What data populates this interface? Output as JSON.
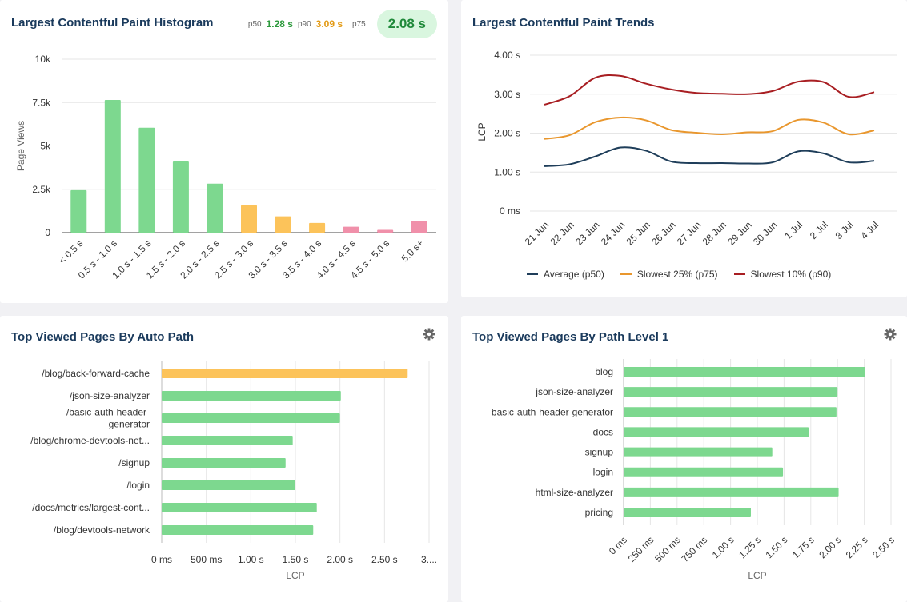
{
  "colors": {
    "good": "#7dd88f",
    "needs": "#fcc35a",
    "poor": "#f090aa",
    "p50": "#1f3e5a",
    "p75": "#e9972e",
    "p90": "#a81e22",
    "grid": "#e6e6e6",
    "axis": "#444444",
    "title": "#1a3a5c"
  },
  "histogram": {
    "title": "Largest Contentful Paint Histogram",
    "stats": {
      "p50_label": "p50",
      "p50_value": "1.28 s",
      "p90_label": "p90",
      "p90_value": "3.09 s",
      "p75_label": "p75",
      "p75_value": "2.08 s"
    }
  },
  "trends": {
    "title": "Largest Contentful Paint Trends",
    "legend": [
      {
        "label": "Average (p50)",
        "color": "#1f3e5a"
      },
      {
        "label": "Slowest 25% (p75)",
        "color": "#e9972e"
      },
      {
        "label": "Slowest 10% (p90)",
        "color": "#a81e22"
      }
    ]
  },
  "auto_path": {
    "title": "Top Viewed Pages By Auto Path",
    "gear_icon": "gear-icon"
  },
  "path_level": {
    "title": "Top Viewed Pages By Path Level 1",
    "gear_icon": "gear-icon"
  },
  "chart_data": [
    {
      "type": "bar",
      "title": "Largest Contentful Paint Histogram",
      "ylabel": "Page Views",
      "xlabel": "",
      "ylim": [
        0,
        10000
      ],
      "y_ticks": [
        {
          "value": 0,
          "label": "0"
        },
        {
          "value": 2500,
          "label": "2.5k"
        },
        {
          "value": 5000,
          "label": "5k"
        },
        {
          "value": 7500,
          "label": "7.5k"
        },
        {
          "value": 10000,
          "label": "10k"
        }
      ],
      "categories": [
        "< 0.5 s",
        "0.5 s - 1.0 s",
        "1.0 s - 1.5 s",
        "1.5 s - 2.0 s",
        "2.0 s - 2.5 s",
        "2.5 s - 3.0 s",
        "3.0 s - 3.5 s",
        "3.5 s - 4.0 s",
        "4.0 s - 4.5 s",
        "4.5 s - 5.0 s",
        "5.0 s+"
      ],
      "values": [
        2450,
        7650,
        6050,
        4100,
        2820,
        1580,
        940,
        560,
        340,
        160,
        680
      ],
      "bar_colors": [
        "good",
        "good",
        "good",
        "good",
        "good",
        "needs",
        "needs",
        "needs",
        "poor",
        "poor",
        "poor"
      ],
      "grid": true
    },
    {
      "type": "line",
      "title": "Largest Contentful Paint Trends",
      "ylabel": "LCP",
      "xlabel": "",
      "ylim": [
        0,
        4
      ],
      "y_ticks": [
        {
          "value": 0,
          "label": "0 ms"
        },
        {
          "value": 1,
          "label": "1.00 s"
        },
        {
          "value": 2,
          "label": "2.00 s"
        },
        {
          "value": 3,
          "label": "3.00 s"
        },
        {
          "value": 4,
          "label": "4.00 s"
        }
      ],
      "x": [
        "21 Jun",
        "22 Jun",
        "23 Jun",
        "24 Jun",
        "25 Jun",
        "26 Jun",
        "27 Jun",
        "28 Jun",
        "29 Jun",
        "30 Jun",
        "1 Jul",
        "2 Jul",
        "3 Jul",
        "4 Jul"
      ],
      "series": [
        {
          "name": "Average (p50)",
          "color": "p50",
          "values": [
            1.15,
            1.2,
            1.4,
            1.63,
            1.55,
            1.27,
            1.23,
            1.23,
            1.22,
            1.25,
            1.53,
            1.48,
            1.25,
            1.29
          ]
        },
        {
          "name": "Slowest 25% (p75)",
          "color": "p75",
          "values": [
            1.85,
            1.95,
            2.28,
            2.4,
            2.33,
            2.08,
            2.01,
            1.97,
            2.02,
            2.05,
            2.34,
            2.27,
            1.97,
            2.07
          ]
        },
        {
          "name": "Slowest 10% (p90)",
          "color": "p90",
          "values": [
            2.73,
            2.95,
            3.42,
            3.47,
            3.27,
            3.12,
            3.03,
            3.01,
            3.0,
            3.08,
            3.32,
            3.31,
            2.93,
            3.05
          ]
        }
      ],
      "legend": "bottom",
      "grid": true
    },
    {
      "type": "bar",
      "orientation": "horizontal",
      "title": "Top Viewed Pages By Auto Path",
      "xlabel": "LCP",
      "xlim": [
        0,
        3000
      ],
      "x_ticks": [
        {
          "value": 0,
          "label": "0 ms"
        },
        {
          "value": 500,
          "label": "500 ms"
        },
        {
          "value": 1000,
          "label": "1.00 s"
        },
        {
          "value": 1500,
          "label": "1.50 s"
        },
        {
          "value": 2000,
          "label": "2.00 s"
        },
        {
          "value": 2500,
          "label": "2.50 s"
        },
        {
          "value": 3000,
          "label": "3...."
        }
      ],
      "categories": [
        {
          "lines": [
            "/blog/back-forward-cache"
          ]
        },
        {
          "lines": [
            "/json-size-analyzer"
          ]
        },
        {
          "lines": [
            "/basic-auth-header-",
            "generator"
          ]
        },
        {
          "lines": [
            "/blog/chrome-devtools-net..."
          ]
        },
        {
          "lines": [
            "/signup"
          ]
        },
        {
          "lines": [
            "/login"
          ]
        },
        {
          "lines": [
            "/docs/metrics/largest-cont..."
          ]
        },
        {
          "lines": [
            "/blog/devtools-network"
          ]
        }
      ],
      "values": [
        2760,
        2010,
        2000,
        1470,
        1390,
        1500,
        1740,
        1700
      ],
      "bar_colors": [
        "needs",
        "good",
        "good",
        "good",
        "good",
        "good",
        "good",
        "good"
      ],
      "grid": true
    },
    {
      "type": "bar",
      "orientation": "horizontal",
      "title": "Top Viewed Pages By Path Level 1",
      "xlabel": "LCP",
      "xlim": [
        0,
        2.5
      ],
      "x_ticks": [
        {
          "value": 0,
          "label": "0 ms"
        },
        {
          "value": 0.25,
          "label": "250 ms"
        },
        {
          "value": 0.5,
          "label": "500 ms"
        },
        {
          "value": 0.75,
          "label": "750 ms"
        },
        {
          "value": 1.0,
          "label": "1.00 s"
        },
        {
          "value": 1.25,
          "label": "1.25 s"
        },
        {
          "value": 1.5,
          "label": "1.50 s"
        },
        {
          "value": 1.75,
          "label": "1.75 s"
        },
        {
          "value": 2.0,
          "label": "2.00 s"
        },
        {
          "value": 2.25,
          "label": "2.25 s"
        },
        {
          "value": 2.5,
          "label": "2.50 s"
        }
      ],
      "categories": [
        {
          "lines": [
            "blog"
          ]
        },
        {
          "lines": [
            "json-size-analyzer"
          ]
        },
        {
          "lines": [
            "basic-auth-header-generator"
          ]
        },
        {
          "lines": [
            "docs"
          ]
        },
        {
          "lines": [
            "signup"
          ]
        },
        {
          "lines": [
            "login"
          ]
        },
        {
          "lines": [
            "html-size-analyzer"
          ]
        },
        {
          "lines": [
            "pricing"
          ]
        }
      ],
      "values": [
        2.26,
        2.0,
        1.99,
        1.73,
        1.39,
        1.49,
        2.01,
        1.19
      ],
      "bar_colors": [
        "good",
        "good",
        "good",
        "good",
        "good",
        "good",
        "good",
        "good"
      ],
      "grid": true
    }
  ]
}
